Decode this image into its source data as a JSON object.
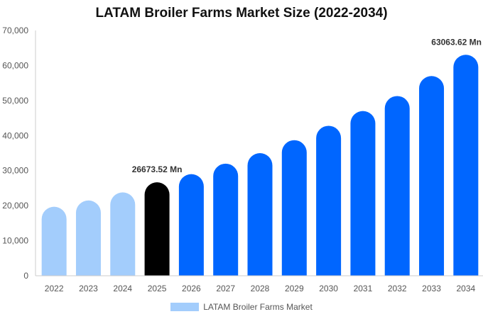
{
  "chart_data": {
    "type": "bar",
    "title": "LATAM Broiler Farms Market Size (2022-2034)",
    "categories": [
      "2022",
      "2023",
      "2024",
      "2025",
      "2026",
      "2027",
      "2028",
      "2029",
      "2030",
      "2031",
      "2032",
      "2033",
      "2034"
    ],
    "series": [
      {
        "name": "LATAM Broiler Farms Market",
        "values": [
          19700,
          21500,
          23800,
          26673.52,
          29000,
          32000,
          35000,
          38700,
          42800,
          47000,
          51300,
          57000,
          63063.62
        ]
      }
    ],
    "data_labels": [
      {
        "category": "2025",
        "text": "26673.52 Mn"
      },
      {
        "category": "2034",
        "text": "63063.62 Mn"
      }
    ],
    "ylim": [
      0,
      70000
    ],
    "yticks": [
      "0",
      "10,000",
      "20,000",
      "30,000",
      "40,000",
      "50,000",
      "60,000",
      "70,000"
    ],
    "ytick_values": [
      0,
      10000,
      20000,
      30000,
      40000,
      50000,
      60000,
      70000
    ],
    "bar_colors": [
      "#a3cdfc",
      "#a3cdfc",
      "#a3cdfc",
      "#000000",
      "#0066ff",
      "#0066ff",
      "#0066ff",
      "#0066ff",
      "#0066ff",
      "#0066ff",
      "#0066ff",
      "#0066ff",
      "#0066ff"
    ],
    "legend": {
      "label": "LATAM Broiler Farms Market",
      "color": "#a3cdfc",
      "position": "bottom"
    },
    "grid": false
  }
}
